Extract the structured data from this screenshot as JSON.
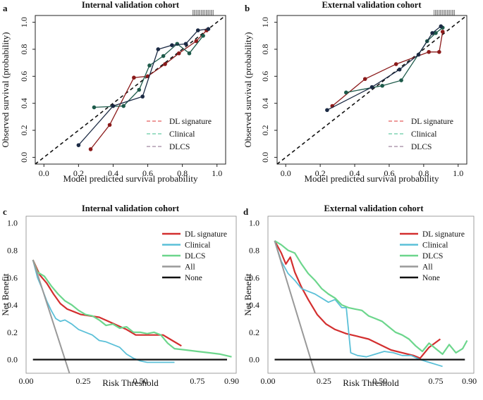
{
  "chart_data": [
    {
      "panel": "a",
      "type": "line",
      "title": "Internal validation cohort",
      "xlabel": "Model predicted survival probability",
      "ylabel": "Observed survival (probability)",
      "xlim": [
        -0.05,
        1.05
      ],
      "ylim": [
        -0.05,
        1.05
      ],
      "xticks": [
        "0.0",
        "0.2",
        "0.4",
        "0.6",
        "0.8",
        "1.0"
      ],
      "yticks": [
        "0.0",
        "0.2",
        "0.4",
        "0.6",
        "0.8",
        "1.0"
      ],
      "legend": [
        "DL signature",
        "Clinical",
        "DLCS"
      ],
      "legend_position": "bottom-right",
      "reference_line": "diagonal",
      "colors": {
        "DL signature": "#8b1a1a",
        "Clinical": "#1d5a4a",
        "DLCS": "#1b2a44"
      },
      "legend_colors": {
        "DL signature": "#e87878",
        "Clinical": "#7fd4b4",
        "DLCS": "#b09cb0"
      },
      "series": [
        {
          "name": "DL signature",
          "x": [
            0.27,
            0.38,
            0.52,
            0.6,
            0.7,
            0.78,
            0.88,
            0.94
          ],
          "y": [
            0.06,
            0.24,
            0.59,
            0.6,
            0.69,
            0.77,
            0.86,
            0.94
          ]
        },
        {
          "name": "Clinical",
          "x": [
            0.29,
            0.46,
            0.55,
            0.61,
            0.69,
            0.77,
            0.84,
            0.92
          ],
          "y": [
            0.37,
            0.38,
            0.5,
            0.68,
            0.75,
            0.84,
            0.77,
            0.9
          ]
        },
        {
          "name": "DLCS",
          "x": [
            0.2,
            0.4,
            0.57,
            0.66,
            0.74,
            0.82,
            0.89,
            0.95
          ],
          "y": [
            0.09,
            0.38,
            0.45,
            0.8,
            0.83,
            0.84,
            0.94,
            0.95
          ]
        }
      ]
    },
    {
      "panel": "b",
      "type": "line",
      "title": "External validation cohort",
      "xlabel": "Model predicted survival probability",
      "ylabel": "Observed survival (probability)",
      "xlim": [
        -0.05,
        1.05
      ],
      "ylim": [
        -0.05,
        1.05
      ],
      "xticks": [
        "0.0",
        "0.2",
        "0.4",
        "0.6",
        "0.8",
        "1.0"
      ],
      "yticks": [
        "0.0",
        "0.2",
        "0.4",
        "0.6",
        "0.8",
        "1.0"
      ],
      "legend": [
        "DL signature",
        "Clinical",
        "DLCS"
      ],
      "legend_position": "bottom-right",
      "reference_line": "diagonal",
      "colors": {
        "DL signature": "#8b1a1a",
        "Clinical": "#1d5a4a",
        "DLCS": "#1b2a44"
      },
      "legend_colors": {
        "DL signature": "#e87878",
        "Clinical": "#7fd4b4",
        "DLCS": "#b09cb0"
      },
      "series": [
        {
          "name": "DL signature",
          "x": [
            0.27,
            0.46,
            0.64,
            0.83,
            0.89,
            0.91
          ],
          "y": [
            0.38,
            0.58,
            0.69,
            0.78,
            0.78,
            0.93
          ]
        },
        {
          "name": "Clinical",
          "x": [
            0.35,
            0.56,
            0.67,
            0.82,
            0.87,
            0.91
          ],
          "y": [
            0.48,
            0.53,
            0.57,
            0.86,
            0.92,
            0.96
          ]
        },
        {
          "name": "DLCS",
          "x": [
            0.24,
            0.5,
            0.66,
            0.77,
            0.85,
            0.9
          ],
          "y": [
            0.35,
            0.52,
            0.65,
            0.76,
            0.92,
            0.97
          ]
        }
      ]
    },
    {
      "panel": "c",
      "type": "line",
      "title": "Internal validation cohort",
      "xlabel": "Risk Threshold",
      "ylabel": "Net Benefit",
      "xlim": [
        0.0,
        0.92
      ],
      "ylim": [
        -0.1,
        1.05
      ],
      "xticks": [
        "0.00",
        "0.25",
        "0.50",
        "0.75",
        "0.90"
      ],
      "yticks": [
        "0.0",
        "0.2",
        "0.4",
        "0.6",
        "0.8",
        "1.0"
      ],
      "legend": [
        "DL signature",
        "Clinical",
        "DLCS",
        "All",
        "None"
      ],
      "legend_position": "top-right",
      "colors": {
        "DL signature": "#d32f2f",
        "Clinical": "#5bc0d8",
        "DLCS": "#6cd68c",
        "All": "#999999",
        "None": "#111111"
      },
      "series": [
        {
          "name": "DL signature",
          "x": [
            0.03,
            0.06,
            0.09,
            0.12,
            0.15,
            0.18,
            0.21,
            0.24,
            0.28,
            0.32,
            0.36,
            0.4,
            0.44,
            0.48,
            0.52,
            0.56,
            0.6,
            0.64,
            0.68
          ],
          "y": [
            0.73,
            0.62,
            0.56,
            0.48,
            0.41,
            0.37,
            0.35,
            0.33,
            0.32,
            0.31,
            0.28,
            0.25,
            0.22,
            0.18,
            0.18,
            0.18,
            0.18,
            0.14,
            0.1
          ]
        },
        {
          "name": "Clinical",
          "x": [
            0.03,
            0.05,
            0.07,
            0.09,
            0.11,
            0.13,
            0.15,
            0.17,
            0.2,
            0.23,
            0.26,
            0.29,
            0.32,
            0.35,
            0.38,
            0.41,
            0.44,
            0.47,
            0.5,
            0.53,
            0.56,
            0.6,
            0.65
          ],
          "y": [
            0.73,
            0.6,
            0.52,
            0.43,
            0.36,
            0.3,
            0.28,
            0.29,
            0.26,
            0.22,
            0.2,
            0.18,
            0.14,
            0.13,
            0.11,
            0.09,
            0.04,
            0.01,
            -0.01,
            -0.02,
            -0.02,
            -0.02,
            -0.02
          ]
        },
        {
          "name": "DLCS",
          "x": [
            0.03,
            0.05,
            0.08,
            0.11,
            0.14,
            0.17,
            0.2,
            0.23,
            0.26,
            0.29,
            0.32,
            0.35,
            0.38,
            0.41,
            0.44,
            0.47,
            0.5,
            0.53,
            0.56,
            0.59,
            0.62,
            0.65,
            0.7,
            0.75,
            0.8,
            0.85,
            0.9
          ],
          "y": [
            0.73,
            0.64,
            0.61,
            0.54,
            0.48,
            0.43,
            0.4,
            0.36,
            0.33,
            0.32,
            0.29,
            0.25,
            0.26,
            0.23,
            0.24,
            0.2,
            0.2,
            0.19,
            0.2,
            0.18,
            0.12,
            0.08,
            0.07,
            0.06,
            0.05,
            0.04,
            0.02
          ]
        },
        {
          "name": "All",
          "x": [
            0.03,
            0.19
          ],
          "y": [
            0.73,
            -0.1
          ]
        },
        {
          "name": "None",
          "x": [
            0.03,
            0.88
          ],
          "y": [
            0.0,
            0.0
          ]
        }
      ]
    },
    {
      "panel": "d",
      "type": "line",
      "title": "External validation cohort",
      "xlabel": "Risk Threshold",
      "ylabel": "Net Benefit",
      "xlim": [
        0.0,
        0.92
      ],
      "ylim": [
        -0.1,
        1.05
      ],
      "xticks": [
        "0.00",
        "0.25",
        "0.50",
        "0.75",
        "0.90"
      ],
      "yticks": [
        "0.0",
        "0.2",
        "0.4",
        "0.6",
        "0.8",
        "1.0"
      ],
      "legend": [
        "DL signature",
        "Clinical",
        "DLCS",
        "All",
        "None"
      ],
      "legend_position": "top-right",
      "colors": {
        "DL signature": "#d32f2f",
        "Clinical": "#5bc0d8",
        "DLCS": "#6cd68c",
        "All": "#999999",
        "None": "#111111"
      },
      "series": [
        {
          "name": "DL signature",
          "x": [
            0.03,
            0.06,
            0.08,
            0.1,
            0.12,
            0.15,
            0.18,
            0.22,
            0.26,
            0.3,
            0.35,
            0.4,
            0.45,
            0.5,
            0.55,
            0.6,
            0.65,
            0.68,
            0.72,
            0.77
          ],
          "y": [
            0.87,
            0.78,
            0.7,
            0.75,
            0.64,
            0.53,
            0.44,
            0.33,
            0.26,
            0.22,
            0.19,
            0.17,
            0.15,
            0.11,
            0.07,
            0.05,
            0.03,
            0.01,
            0.09,
            0.15
          ]
        },
        {
          "name": "Clinical",
          "x": [
            0.03,
            0.06,
            0.09,
            0.12,
            0.15,
            0.18,
            0.21,
            0.24,
            0.27,
            0.3,
            0.33,
            0.35,
            0.37,
            0.4,
            0.44,
            0.48,
            0.52,
            0.56,
            0.6,
            0.64,
            0.68,
            0.72,
            0.78
          ],
          "y": [
            0.87,
            0.72,
            0.63,
            0.58,
            0.52,
            0.5,
            0.48,
            0.45,
            0.42,
            0.44,
            0.38,
            0.38,
            0.05,
            0.03,
            0.02,
            0.04,
            0.06,
            0.05,
            0.03,
            0.03,
            0.0,
            -0.02,
            -0.05
          ]
        },
        {
          "name": "DLCS",
          "x": [
            0.03,
            0.06,
            0.09,
            0.12,
            0.15,
            0.18,
            0.21,
            0.24,
            0.27,
            0.3,
            0.33,
            0.36,
            0.39,
            0.42,
            0.45,
            0.48,
            0.51,
            0.54,
            0.57,
            0.6,
            0.63,
            0.66,
            0.69,
            0.72,
            0.75,
            0.78,
            0.81,
            0.84,
            0.87,
            0.89
          ],
          "y": [
            0.87,
            0.84,
            0.8,
            0.78,
            0.7,
            0.63,
            0.58,
            0.52,
            0.48,
            0.45,
            0.4,
            0.38,
            0.37,
            0.36,
            0.32,
            0.3,
            0.28,
            0.24,
            0.2,
            0.18,
            0.15,
            0.1,
            0.06,
            0.12,
            0.08,
            0.04,
            0.11,
            0.05,
            0.08,
            0.14
          ]
        },
        {
          "name": "All",
          "x": [
            0.03,
            0.21
          ],
          "y": [
            0.87,
            -0.1
          ]
        },
        {
          "name": "None",
          "x": [
            0.03,
            0.88
          ],
          "y": [
            0.0,
            0.0
          ]
        }
      ]
    }
  ]
}
